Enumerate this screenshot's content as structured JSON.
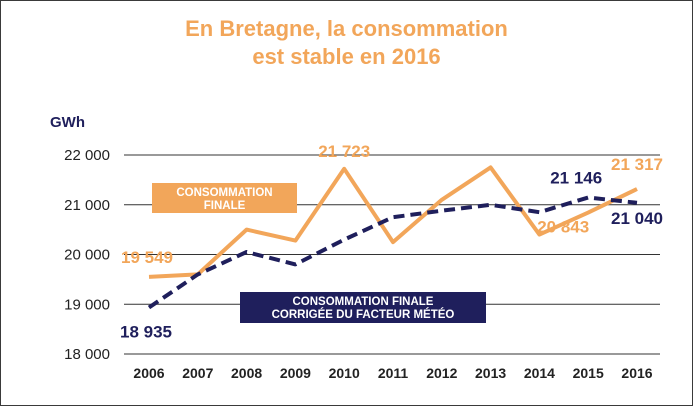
{
  "title": {
    "line1": "En Bretagne, la consommation",
    "line2": "est stable en 2016"
  },
  "colors": {
    "orange": "#f2a65a",
    "navy": "#1f1f5c",
    "grid": "#333333"
  },
  "chart_data": {
    "type": "line",
    "ylabel": "GWh",
    "ylim": [
      18000,
      22000
    ],
    "yticks": [
      {
        "value": 18000,
        "label": "18 000"
      },
      {
        "value": 19000,
        "label": "19 000"
      },
      {
        "value": 20000,
        "label": "20 000"
      },
      {
        "value": 21000,
        "label": "21 000"
      },
      {
        "value": 22000,
        "label": "22 000"
      }
    ],
    "categories": [
      "2006",
      "2007",
      "2008",
      "2009",
      "2010",
      "2011",
      "2012",
      "2013",
      "2014",
      "2015",
      "2016"
    ],
    "series": [
      {
        "name": "CONSOMMATION FINALE",
        "style": "solid",
        "color": "#f2a65a",
        "values": [
          19549,
          19600,
          20500,
          20280,
          21723,
          20250,
          21100,
          21750,
          20400,
          20843,
          21317
        ]
      },
      {
        "name": "CONSOMMATION FINALE CORRIGÉE DU FACTEUR MÉTÉO",
        "style": "dashed",
        "color": "#1f1f5c",
        "values": [
          18935,
          19600,
          20050,
          19800,
          20300,
          20750,
          20880,
          21000,
          20850,
          21146,
          21040
        ]
      }
    ],
    "data_labels": [
      {
        "series": 0,
        "index": 0,
        "text": "19 549"
      },
      {
        "series": 0,
        "index": 4,
        "text": "21 723"
      },
      {
        "series": 0,
        "index": 9,
        "text": "20 843"
      },
      {
        "series": 0,
        "index": 10,
        "text": "21 317"
      },
      {
        "series": 1,
        "index": 0,
        "text": "18 935"
      },
      {
        "series": 1,
        "index": 9,
        "text": "21 146"
      },
      {
        "series": 1,
        "index": 10,
        "text": "21 040"
      }
    ],
    "legend": {
      "finale_line1": "CONSOMMATION",
      "finale_line2": "FINALE",
      "corrigee_line1": "CONSOMMATION FINALE",
      "corrigee_line2": "CORRIGÉE DU FACTEUR MÉTÉO"
    }
  }
}
